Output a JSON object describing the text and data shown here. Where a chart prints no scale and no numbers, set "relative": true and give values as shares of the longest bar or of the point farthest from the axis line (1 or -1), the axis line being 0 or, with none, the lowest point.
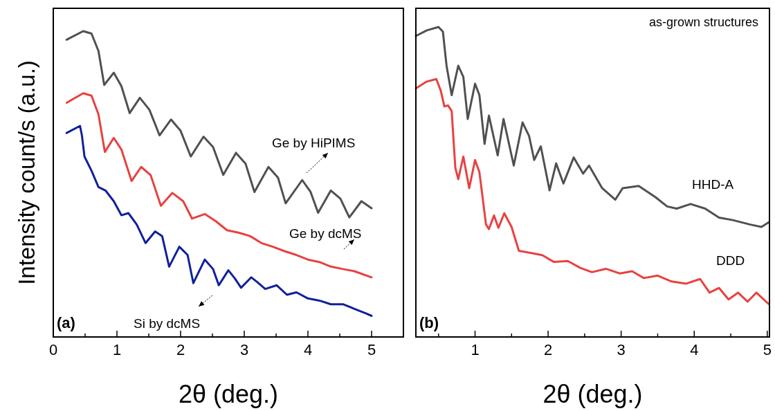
{
  "chart_data": [
    {
      "type": "line",
      "relative": true,
      "xlabel": "2θ (deg.)",
      "ylabel": "Intensity count/s (a.u.)",
      "xlim": [
        0,
        5.5
      ],
      "xticks": [
        0,
        {
          "value": 0.5,
          "label": null
        },
        1,
        {
          "value": 1.5,
          "label": null
        },
        2,
        {
          "value": 2.5,
          "label": null
        },
        3,
        {
          "value": 3.5,
          "label": null
        },
        4,
        {
          "value": 4.5,
          "label": null
        },
        5
      ],
      "annotations": [
        "(a)"
      ],
      "grid": false,
      "series": [
        {
          "name": "Ge by HiPIMS",
          "color": "#505050",
          "x": [
            0.21,
            0.47,
            0.6,
            0.71,
            0.8,
            0.95,
            1.07,
            1.2,
            1.36,
            1.51,
            1.67,
            1.85,
            2.0,
            2.16,
            2.36,
            2.51,
            2.67,
            2.87,
            3.02,
            3.16,
            3.38,
            3.53,
            3.65,
            3.91,
            4.04,
            4.16,
            4.36,
            4.51,
            4.65,
            4.84,
            5.0
          ],
          "values": [
            0.972,
            1.0,
            0.992,
            0.935,
            0.824,
            0.864,
            0.82,
            0.732,
            0.782,
            0.743,
            0.659,
            0.711,
            0.674,
            0.59,
            0.655,
            0.621,
            0.53,
            0.602,
            0.567,
            0.474,
            0.556,
            0.521,
            0.437,
            0.513,
            0.475,
            0.406,
            0.479,
            0.452,
            0.391,
            0.444,
            0.421
          ]
        },
        {
          "name": "Ge by dcMS",
          "color": "#e8413f",
          "x": [
            0.21,
            0.47,
            0.6,
            0.71,
            0.81,
            0.95,
            1.07,
            1.23,
            1.38,
            1.53,
            1.69,
            1.87,
            2.04,
            2.18,
            2.38,
            2.55,
            2.73,
            2.91,
            3.09,
            3.27,
            3.45,
            3.64,
            3.82,
            4.0,
            4.18,
            4.36,
            4.55,
            4.73,
            5.0
          ],
          "values": [
            0.766,
            0.797,
            0.789,
            0.728,
            0.605,
            0.651,
            0.613,
            0.51,
            0.556,
            0.529,
            0.429,
            0.471,
            0.444,
            0.387,
            0.402,
            0.379,
            0.349,
            0.341,
            0.33,
            0.307,
            0.295,
            0.28,
            0.268,
            0.253,
            0.245,
            0.23,
            0.222,
            0.215,
            0.195
          ]
        },
        {
          "name": "Si by dcMS",
          "color": "#10209a",
          "x": [
            0.21,
            0.42,
            0.45,
            0.49,
            0.6,
            0.71,
            0.82,
            0.95,
            1.07,
            1.18,
            1.31,
            1.45,
            1.6,
            1.71,
            1.82,
            1.98,
            2.11,
            2.2,
            2.38,
            2.51,
            2.6,
            2.75,
            2.85,
            2.95,
            3.11,
            3.2,
            3.33,
            3.51,
            3.67,
            3.82,
            4.0,
            4.18,
            4.36,
            4.55,
            4.73,
            4.91,
            5.0
          ],
          "values": [
            0.667,
            0.69,
            0.659,
            0.59,
            0.544,
            0.49,
            0.479,
            0.444,
            0.398,
            0.405,
            0.368,
            0.307,
            0.345,
            0.33,
            0.23,
            0.295,
            0.268,
            0.176,
            0.253,
            0.222,
            0.169,
            0.218,
            0.192,
            0.161,
            0.195,
            0.18,
            0.157,
            0.169,
            0.138,
            0.146,
            0.126,
            0.119,
            0.107,
            0.107,
            0.092,
            0.077,
            0.069
          ]
        }
      ]
    },
    {
      "type": "line",
      "relative": true,
      "xlabel": "2θ (deg.)",
      "xlim": [
        0.19,
        5.03
      ],
      "xticks": [
        {
          "value": 0.5,
          "label": null
        },
        1,
        {
          "value": 1.5,
          "label": null
        },
        2,
        {
          "value": 2.5,
          "label": null
        },
        3,
        {
          "value": 3.5,
          "label": null
        },
        4,
        {
          "value": 4.5,
          "label": null
        },
        5
      ],
      "annotations": [
        "(b)",
        "as-grown structures"
      ],
      "grid": false,
      "series": [
        {
          "name": "HHD-A",
          "color": "#505050",
          "x": [
            0.19,
            0.34,
            0.5,
            0.56,
            0.61,
            0.68,
            0.77,
            0.84,
            0.9,
            1.0,
            1.06,
            1.13,
            1.19,
            1.31,
            1.39,
            1.53,
            1.65,
            1.74,
            1.81,
            1.9,
            2.02,
            2.11,
            2.21,
            2.35,
            2.48,
            2.56,
            2.74,
            2.92,
            3.02,
            3.24,
            3.47,
            3.63,
            3.76,
            3.95,
            4.15,
            4.34,
            4.53,
            4.76,
            4.92,
            5.02
          ],
          "values": [
            0.971,
            0.989,
            1.0,
            0.985,
            0.875,
            0.78,
            0.875,
            0.839,
            0.703,
            0.817,
            0.78,
            0.623,
            0.714,
            0.586,
            0.703,
            0.553,
            0.692,
            0.648,
            0.571,
            0.615,
            0.473,
            0.56,
            0.495,
            0.579,
            0.527,
            0.553,
            0.48,
            0.443,
            0.48,
            0.487,
            0.451,
            0.421,
            0.414,
            0.429,
            0.414,
            0.385,
            0.377,
            0.363,
            0.355,
            0.37
          ]
        },
        {
          "name": "DDD",
          "color": "#e8413f",
          "x": [
            0.19,
            0.34,
            0.47,
            0.53,
            0.58,
            0.63,
            0.68,
            0.73,
            0.77,
            0.84,
            0.92,
            1.0,
            1.06,
            1.15,
            1.19,
            1.26,
            1.32,
            1.4,
            1.5,
            1.6,
            1.76,
            1.92,
            2.08,
            2.27,
            2.44,
            2.6,
            2.79,
            2.98,
            3.15,
            3.31,
            3.5,
            3.69,
            3.89,
            4.08,
            4.21,
            4.34,
            4.47,
            4.6,
            4.73,
            4.85,
            5.02
          ],
          "values": [
            0.802,
            0.824,
            0.832,
            0.795,
            0.744,
            0.747,
            0.729,
            0.546,
            0.509,
            0.582,
            0.48,
            0.571,
            0.531,
            0.363,
            0.348,
            0.392,
            0.352,
            0.399,
            0.355,
            0.278,
            0.271,
            0.264,
            0.242,
            0.245,
            0.223,
            0.209,
            0.22,
            0.205,
            0.212,
            0.19,
            0.198,
            0.179,
            0.172,
            0.187,
            0.143,
            0.158,
            0.121,
            0.143,
            0.114,
            0.143,
            0.106
          ]
        }
      ]
    }
  ]
}
